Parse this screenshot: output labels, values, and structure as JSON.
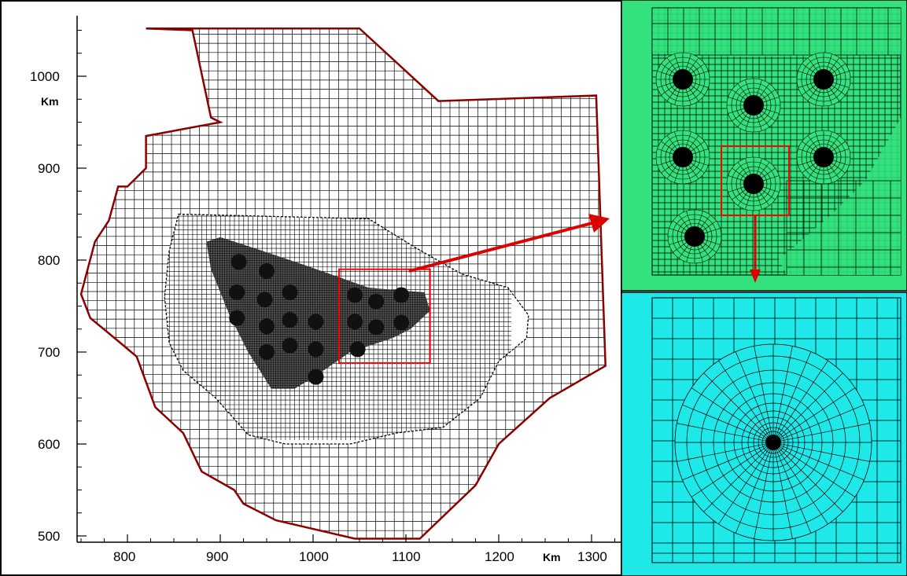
{
  "chart_data": {
    "type": "mesh",
    "x_axis": {
      "range": [
        740,
        1330
      ],
      "ticks": [
        800,
        900,
        1000,
        1100,
        1200,
        1300
      ],
      "unit_label": "Km"
    },
    "y_axis": {
      "range": [
        492,
        1060
      ],
      "ticks": [
        500,
        600,
        700,
        800,
        900,
        1000
      ],
      "unit_label": "Km"
    },
    "domain_boundary_km": [
      [
        820,
        1052
      ],
      [
        1050,
        1052
      ],
      [
        1135,
        973
      ],
      [
        1305,
        979
      ],
      [
        1315,
        685
      ],
      [
        1255,
        650
      ],
      [
        1200,
        600
      ],
      [
        1175,
        555
      ],
      [
        1115,
        497
      ],
      [
        1045,
        497
      ],
      [
        960,
        517
      ],
      [
        925,
        535
      ],
      [
        915,
        550
      ],
      [
        880,
        570
      ],
      [
        860,
        612
      ],
      [
        830,
        640
      ],
      [
        810,
        695
      ],
      [
        790,
        712
      ],
      [
        760,
        737
      ],
      [
        750,
        763
      ],
      [
        765,
        820
      ],
      [
        780,
        843
      ],
      [
        790,
        880
      ],
      [
        800,
        880
      ],
      [
        820,
        900
      ],
      [
        820,
        935
      ],
      [
        900,
        950
      ],
      [
        890,
        955
      ],
      [
        870,
        1050
      ]
    ],
    "refinement_zone_1_km": [
      [
        855,
        850
      ],
      [
        1060,
        845
      ],
      [
        1108,
        815
      ],
      [
        1160,
        785
      ],
      [
        1210,
        770
      ],
      [
        1232,
        740
      ],
      [
        1230,
        715
      ],
      [
        1200,
        690
      ],
      [
        1180,
        650
      ],
      [
        1140,
        618
      ],
      [
        1090,
        612
      ],
      [
        1040,
        600
      ],
      [
        970,
        600
      ],
      [
        930,
        610
      ],
      [
        895,
        650
      ],
      [
        860,
        680
      ],
      [
        845,
        710
      ],
      [
        840,
        760
      ],
      [
        845,
        810
      ]
    ],
    "refinement_zone_2_km": [
      [
        885,
        820
      ],
      [
        900,
        825
      ],
      [
        940,
        812
      ],
      [
        990,
        795
      ],
      [
        1060,
        770
      ],
      [
        1120,
        765
      ],
      [
        1126,
        745
      ],
      [
        1105,
        725
      ],
      [
        1085,
        715
      ],
      [
        1040,
        700
      ],
      [
        1000,
        672
      ],
      [
        980,
        660
      ],
      [
        955,
        660
      ],
      [
        930,
        700
      ],
      [
        910,
        740
      ],
      [
        890,
        790
      ]
    ],
    "wells_km": [
      [
        920,
        798
      ],
      [
        950,
        788
      ],
      [
        918,
        765
      ],
      [
        948,
        757
      ],
      [
        975,
        765
      ],
      [
        918,
        737
      ],
      [
        950,
        728
      ],
      [
        975,
        735
      ],
      [
        1003,
        733
      ],
      [
        950,
        700
      ],
      [
        975,
        707
      ],
      [
        1003,
        703
      ],
      [
        1003,
        673
      ],
      [
        1045,
        762
      ],
      [
        1068,
        755
      ],
      [
        1095,
        762
      ],
      [
        1045,
        733
      ],
      [
        1068,
        727
      ],
      [
        1095,
        732
      ],
      [
        1048,
        703
      ]
    ],
    "zoom_box_km": {
      "x": [
        1028,
        1126
      ],
      "y": [
        688,
        790
      ]
    },
    "colors": {
      "boundary": "#8b0000",
      "mesh": "#000000",
      "highlight": "#ff0000",
      "inset_top_bg": "#33e27c",
      "inset_bottom_bg": "#1ee8e8"
    }
  }
}
